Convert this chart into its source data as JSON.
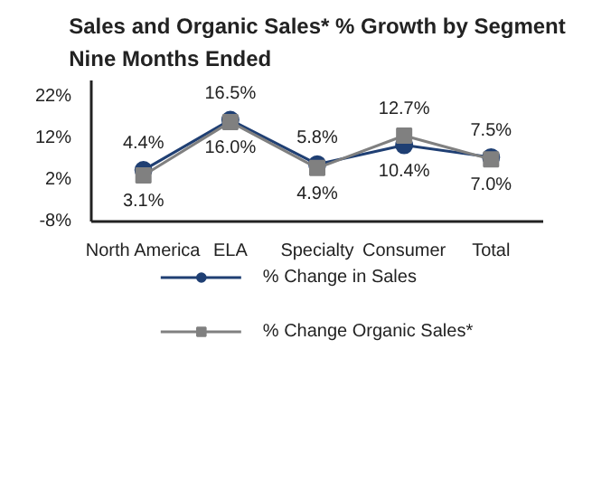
{
  "chart_data": {
    "type": "line",
    "title": "Sales and Organic Sales* % Growth by Segment\nNine Months Ended",
    "categories": [
      "North America",
      "ELA",
      "Specialty",
      "Consumer",
      "Total"
    ],
    "series": [
      {
        "name": "% Change in Sales",
        "color": "#1f3f73",
        "marker": "circle",
        "values": [
          4.4,
          16.5,
          5.8,
          10.4,
          7.5
        ],
        "value_labels": [
          "4.4%",
          "16.5%",
          "5.8%",
          "10.4%",
          "7.5%"
        ]
      },
      {
        "name": "% Change Organic Sales*",
        "color": "#808080",
        "marker": "square",
        "values": [
          3.1,
          16.0,
          4.9,
          12.7,
          7.0
        ],
        "value_labels": [
          "3.1%",
          "16.0%",
          "4.9%",
          "12.7%",
          "7.0%"
        ]
      }
    ],
    "ylim": [
      -8,
      26
    ],
    "yticks": [
      {
        "value": -8,
        "label": "-8%"
      },
      {
        "value": 2,
        "label": "2%"
      },
      {
        "value": 12,
        "label": "12%"
      },
      {
        "value": 22,
        "label": "22%"
      }
    ],
    "grid": false,
    "legend": "bottom"
  }
}
